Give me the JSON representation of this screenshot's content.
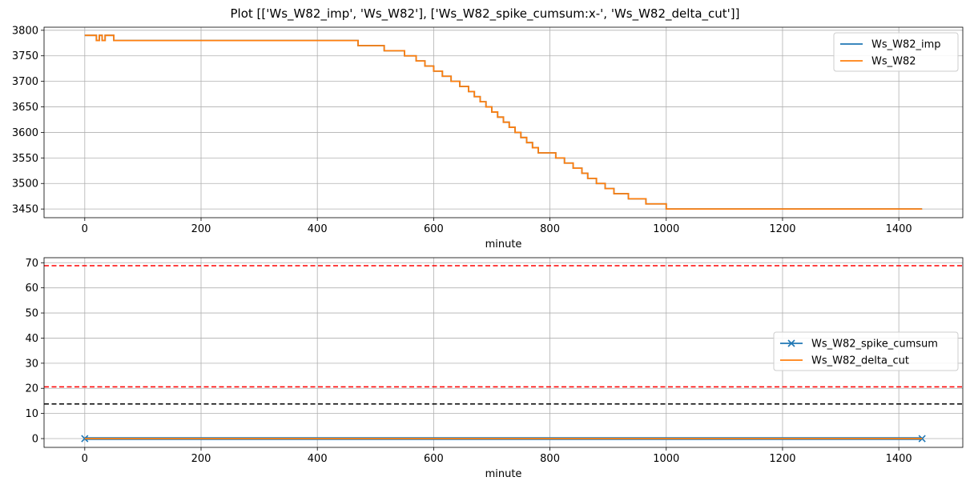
{
  "title": "Plot [['Ws_W82_imp', 'Ws_W82'], ['Ws_W82_spike_cumsum:x-', 'Ws_W82_delta_cut']]",
  "colors": {
    "blue": "#1f77b4",
    "orange": "#ff7f0e",
    "red": "#ff0000",
    "black": "#000000",
    "grid": "#b0b0b0"
  },
  "chart_data": [
    {
      "type": "line",
      "xlabel": "minute",
      "ylabel": "",
      "xlim": [
        -70,
        1510
      ],
      "ylim": [
        3433,
        3806
      ],
      "xticks": [
        0,
        200,
        400,
        600,
        800,
        1000,
        1200,
        1400
      ],
      "yticks": [
        3450,
        3500,
        3550,
        3600,
        3650,
        3700,
        3750,
        3800
      ],
      "grid": true,
      "legend_position": "upper right",
      "series": [
        {
          "name": "Ws_W82_imp",
          "color": "#1f77b4",
          "style": "step",
          "x": [
            0,
            20,
            25,
            30,
            35,
            45,
            50,
            55,
            470,
            515,
            550,
            570,
            585,
            600,
            615,
            630,
            645,
            660,
            670,
            680,
            690,
            700,
            710,
            720,
            730,
            740,
            750,
            760,
            770,
            780,
            795,
            810,
            825,
            840,
            855,
            865,
            880,
            895,
            910,
            935,
            965,
            1000,
            1440
          ],
          "y": [
            3790,
            3780,
            3790,
            3780,
            3790,
            3790,
            3780,
            3780,
            3770,
            3760,
            3750,
            3740,
            3730,
            3720,
            3710,
            3700,
            3690,
            3680,
            3670,
            3660,
            3650,
            3640,
            3630,
            3620,
            3610,
            3600,
            3590,
            3580,
            3570,
            3560,
            3560,
            3550,
            3540,
            3530,
            3520,
            3510,
            3500,
            3490,
            3480,
            3470,
            3460,
            3450,
            3450
          ]
        },
        {
          "name": "Ws_W82",
          "color": "#ff7f0e",
          "style": "step",
          "x": [
            0,
            20,
            25,
            30,
            35,
            45,
            50,
            55,
            470,
            515,
            550,
            570,
            585,
            600,
            615,
            630,
            645,
            660,
            670,
            680,
            690,
            700,
            710,
            720,
            730,
            740,
            750,
            760,
            770,
            780,
            795,
            810,
            825,
            840,
            855,
            865,
            880,
            895,
            910,
            935,
            965,
            1000,
            1440
          ],
          "y": [
            3790,
            3780,
            3790,
            3780,
            3790,
            3790,
            3780,
            3780,
            3770,
            3760,
            3750,
            3740,
            3730,
            3720,
            3710,
            3700,
            3690,
            3680,
            3670,
            3660,
            3650,
            3640,
            3630,
            3620,
            3610,
            3600,
            3590,
            3580,
            3570,
            3560,
            3560,
            3550,
            3540,
            3530,
            3520,
            3510,
            3500,
            3490,
            3480,
            3470,
            3460,
            3450,
            3450
          ]
        }
      ]
    },
    {
      "type": "line",
      "xlabel": "minute",
      "ylabel": "",
      "xlim": [
        -70,
        1510
      ],
      "ylim": [
        -3.5,
        72
      ],
      "xticks": [
        0,
        200,
        400,
        600,
        800,
        1000,
        1200,
        1400
      ],
      "yticks": [
        0,
        10,
        20,
        30,
        40,
        50,
        60,
        70
      ],
      "grid": true,
      "legend_position": "center right",
      "series": [
        {
          "name": "Ws_W82_spike_cumsum",
          "color": "#1f77b4",
          "marker": "x",
          "x": [
            0,
            1440
          ],
          "y": [
            0,
            0
          ]
        },
        {
          "name": "Ws_W82_delta_cut",
          "color": "#ff7f0e",
          "x": [
            0,
            1440
          ],
          "y": [
            0,
            0
          ]
        }
      ],
      "hlines": [
        {
          "y": 68.8,
          "color": "#ff0000",
          "style": "dashed"
        },
        {
          "y": 20.6,
          "color": "#ff0000",
          "style": "dashed"
        },
        {
          "y": 13.8,
          "color": "#000000",
          "style": "dashed"
        }
      ]
    }
  ]
}
